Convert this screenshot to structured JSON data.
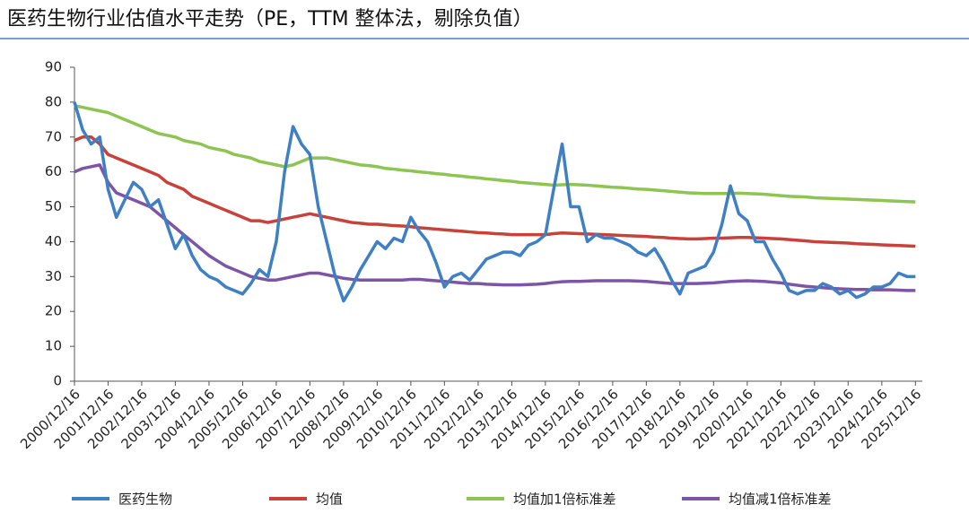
{
  "chart_data": {
    "type": "line",
    "title": "医药生物行业估值水平走势（PE，TTM 整体法，剔除负值）",
    "x": [
      "2000/12/16",
      "2001/03/16",
      "2001/06/16",
      "2001/09/16",
      "2001/12/16",
      "2002/03/16",
      "2002/06/16",
      "2002/09/16",
      "2002/12/16",
      "2003/03/16",
      "2003/06/16",
      "2003/09/16",
      "2003/12/16",
      "2004/03/16",
      "2004/06/16",
      "2004/09/16",
      "2004/12/16",
      "2005/03/16",
      "2005/06/16",
      "2005/09/16",
      "2005/12/16",
      "2006/03/16",
      "2006/06/16",
      "2006/09/16",
      "2006/12/16",
      "2007/03/16",
      "2007/06/16",
      "2007/09/16",
      "2007/12/16",
      "2008/03/16",
      "2008/06/16",
      "2008/09/16",
      "2008/12/16",
      "2009/03/16",
      "2009/06/16",
      "2009/09/16",
      "2009/12/16",
      "2010/03/16",
      "2010/06/16",
      "2010/09/16",
      "2010/12/16",
      "2011/03/16",
      "2011/06/16",
      "2011/09/16",
      "2011/12/16",
      "2012/03/16",
      "2012/06/16",
      "2012/09/16",
      "2012/12/16",
      "2013/03/16",
      "2013/06/16",
      "2013/09/16",
      "2013/12/16",
      "2014/03/16",
      "2014/06/16",
      "2014/09/16",
      "2014/12/16",
      "2015/03/16",
      "2015/06/16",
      "2015/09/16",
      "2015/12/16",
      "2016/03/16",
      "2016/06/16",
      "2016/09/16",
      "2016/12/16",
      "2017/03/16",
      "2017/06/16",
      "2017/09/16",
      "2017/12/16",
      "2018/03/16",
      "2018/06/16",
      "2018/09/16",
      "2018/12/16",
      "2019/03/16",
      "2019/06/16",
      "2019/09/16",
      "2019/12/16",
      "2020/03/16",
      "2020/06/16",
      "2020/09/16",
      "2020/12/16",
      "2021/03/16",
      "2021/06/16",
      "2021/09/16",
      "2021/12/16",
      "2022/03/16",
      "2022/06/16",
      "2022/09/16",
      "2022/12/16",
      "2023/03/16",
      "2023/06/16",
      "2023/09/16",
      "2023/12/16",
      "2024/03/16",
      "2024/06/16",
      "2024/09/16",
      "2024/12/16",
      "2025/03/16",
      "2025/06/16",
      "2025/09/16",
      "2025/12/16"
    ],
    "series": [
      {
        "name": "医药生物",
        "color": "#3f7fc4",
        "values": [
          80,
          72,
          68,
          70,
          55,
          47,
          52,
          57,
          55,
          50,
          52,
          45,
          38,
          42,
          36,
          32,
          30,
          29,
          27,
          26,
          25,
          28,
          32,
          30,
          40,
          60,
          73,
          68,
          65,
          50,
          40,
          30,
          23,
          27,
          32,
          36,
          40,
          38,
          41,
          40,
          47,
          43,
          40,
          34,
          27,
          30,
          31,
          29,
          32,
          35,
          36,
          37,
          37,
          36,
          39,
          40,
          42,
          55,
          68,
          50,
          50,
          40,
          42,
          41,
          41,
          40,
          39,
          37,
          36,
          38,
          34,
          29,
          25,
          31,
          32,
          33,
          37,
          45,
          56,
          48,
          46,
          40,
          40,
          35,
          31,
          26,
          25,
          26,
          26,
          28,
          27,
          25,
          26,
          24,
          25,
          27,
          27,
          28,
          31,
          30,
          30
        ]
      },
      {
        "name": "均值",
        "color": "#c8413b",
        "values": [
          69,
          70,
          70,
          68,
          65,
          64,
          63,
          62,
          61,
          60,
          59,
          57,
          56,
          55,
          53,
          52,
          51,
          50,
          49,
          48,
          47,
          46,
          46,
          45.5,
          46,
          46.5,
          47,
          47.5,
          48,
          47.5,
          47,
          46.5,
          46,
          45.5,
          45.3,
          45,
          45,
          44.8,
          44.6,
          44.5,
          44.3,
          44,
          43.8,
          43.6,
          43.4,
          43.2,
          43,
          42.8,
          42.6,
          42.5,
          42.3,
          42.2,
          42,
          42,
          42,
          42,
          42,
          42.3,
          42.5,
          42.4,
          42.3,
          42.2,
          42.1,
          42,
          41.9,
          41.8,
          41.7,
          41.6,
          41.5,
          41.3,
          41.2,
          41,
          40.9,
          40.8,
          40.8,
          40.9,
          41,
          41,
          41.1,
          41.2,
          41.2,
          41.1,
          41,
          40.9,
          40.8,
          40.6,
          40.4,
          40.2,
          40,
          39.9,
          39.8,
          39.7,
          39.6,
          39.4,
          39.3,
          39.2,
          39.1,
          39,
          38.9,
          38.8,
          38.7
        ]
      },
      {
        "name": "均值加1倍标准差",
        "color": "#8dc452",
        "values": [
          79,
          78.5,
          78,
          77.5,
          77,
          76,
          75,
          74,
          73,
          72,
          71,
          70.5,
          70,
          69,
          68.5,
          68,
          67,
          66.5,
          66,
          65,
          64.5,
          64,
          63,
          62.5,
          62,
          61.5,
          62,
          63,
          64,
          64,
          64,
          63.5,
          63,
          62.5,
          62,
          61.8,
          61.5,
          61,
          60.8,
          60.5,
          60.3,
          60,
          59.8,
          59.5,
          59.3,
          59,
          58.8,
          58.5,
          58.3,
          58,
          57.8,
          57.5,
          57.3,
          57,
          56.8,
          56.6,
          56.4,
          56.2,
          56.3,
          56.4,
          56.3,
          56.2,
          56,
          55.8,
          55.6,
          55.5,
          55.3,
          55.1,
          55,
          54.8,
          54.6,
          54.4,
          54.2,
          54,
          53.9,
          53.8,
          53.8,
          53.8,
          53.8,
          53.9,
          53.8,
          53.7,
          53.6,
          53.4,
          53.2,
          53,
          52.9,
          52.8,
          52.6,
          52.5,
          52.4,
          52.3,
          52.2,
          52.1,
          52,
          51.9,
          51.8,
          51.7,
          51.6,
          51.5,
          51.4
        ]
      },
      {
        "name": "均值减1倍标准差",
        "color": "#7d55a6",
        "values": [
          60,
          61,
          61.5,
          62,
          57,
          54,
          53,
          52,
          51,
          50,
          48,
          46,
          44,
          42,
          40,
          38,
          36,
          34.5,
          33,
          32,
          31,
          30,
          29.5,
          29,
          29,
          29.5,
          30,
          30.5,
          31,
          31,
          30.5,
          30,
          29.5,
          29.2,
          29,
          29,
          29,
          29,
          29,
          29,
          29.2,
          29.2,
          29,
          28.8,
          28.6,
          28.4,
          28.2,
          28,
          28,
          27.8,
          27.7,
          27.6,
          27.6,
          27.6,
          27.7,
          27.8,
          28,
          28.3,
          28.5,
          28.6,
          28.6,
          28.7,
          28.8,
          28.8,
          28.8,
          28.8,
          28.8,
          28.7,
          28.6,
          28.4,
          28.2,
          28,
          28,
          28,
          28,
          28.1,
          28.2,
          28.4,
          28.6,
          28.7,
          28.8,
          28.7,
          28.6,
          28.4,
          28.2,
          27.8,
          27.5,
          27.2,
          27,
          26.8,
          26.6,
          26.5,
          26.4,
          26.3,
          26.3,
          26.2,
          26.2,
          26.2,
          26.1,
          26,
          26
        ]
      }
    ],
    "xlim": [
      "2000/12/16",
      "2026/03/01"
    ],
    "xticks": [
      "2000/12/16",
      "2001/12/16",
      "2002/12/16",
      "2003/12/16",
      "2004/12/16",
      "2005/12/16",
      "2006/12/16",
      "2007/12/16",
      "2008/12/16",
      "2009/12/16",
      "2010/12/16",
      "2011/12/16",
      "2012/12/16",
      "2013/12/16",
      "2014/12/16",
      "2015/12/16",
      "2016/12/16",
      "2017/12/16",
      "2018/12/16",
      "2019/12/16",
      "2020/12/16",
      "2021/12/16",
      "2022/12/16",
      "2023/12/16",
      "2024/12/16",
      "2025/12/16"
    ],
    "ylim": [
      0,
      90
    ],
    "yticks": [
      0,
      10,
      20,
      30,
      40,
      50,
      60,
      70,
      80,
      90
    ],
    "grid": false,
    "legend": "bottom"
  }
}
